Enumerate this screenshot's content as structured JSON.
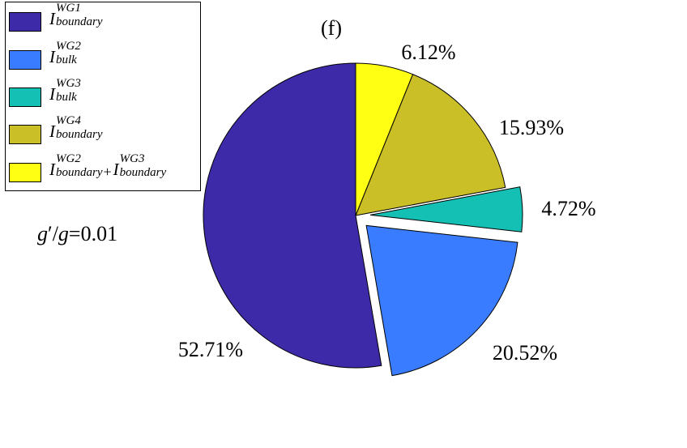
{
  "chart_data": {
    "type": "pie",
    "title": "(f)",
    "annotation": {
      "prefix": "g",
      "prime": "′",
      "slash": "/",
      "var": "g",
      "rest": "=0.01"
    },
    "slices": [
      {
        "label_main": "I",
        "label_sup": "WG1",
        "label_sub": "boundary",
        "value": 52.71,
        "value_label": "52.71%",
        "color": "#3d2aa8",
        "exploded": false
      },
      {
        "label_main": "I",
        "label_sup": "WG2",
        "label_sub": "bulk",
        "value": 20.52,
        "value_label": "20.52%",
        "color": "#3a7cff",
        "exploded": true
      },
      {
        "label_main": "I",
        "label_sup": "WG3",
        "label_sub": "bulk",
        "value": 4.72,
        "value_label": "4.72%",
        "color": "#14c0b4",
        "exploded": true
      },
      {
        "label_main": "I",
        "label_sup": "WG4",
        "label_sub": "boundary",
        "value": 15.93,
        "value_label": "15.93%",
        "color": "#cbbf28",
        "exploded": false
      },
      {
        "label_main": "I",
        "label_sup": "WG2",
        "label_sub": "boundary",
        "plus": "+",
        "label2_main": "I",
        "label2_sup": "WG3",
        "label2_sub": "boundary",
        "value": 6.12,
        "value_label": "6.12%",
        "color": "#ffff14",
        "exploded": false
      }
    ],
    "legend_position": "top-left"
  }
}
